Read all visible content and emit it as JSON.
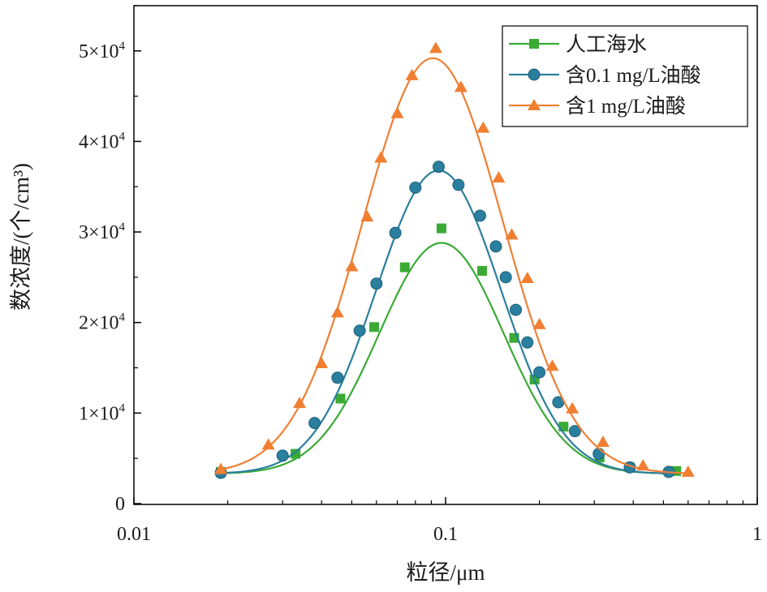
{
  "chart_data": {
    "type": "scatter",
    "xlabel": "粒径/μm",
    "ylabel": "数浓度/(个/cm³)",
    "xscale": "log",
    "xlim": [
      0.01,
      1
    ],
    "ylim": [
      0,
      55000
    ],
    "x_ticks": [
      0.01,
      0.1,
      1
    ],
    "x_tick_labels": [
      "0.01",
      "0.1",
      "1"
    ],
    "y_ticks": [
      0,
      10000,
      20000,
      30000,
      40000,
      50000
    ],
    "y_tick_labels": [
      {
        "base": "0",
        "exp": ""
      },
      {
        "base": "1×10",
        "exp": "4"
      },
      {
        "base": "2×10",
        "exp": "4"
      },
      {
        "base": "3×10",
        "exp": "4"
      },
      {
        "base": "4×10",
        "exp": "4"
      },
      {
        "base": "5×10",
        "exp": "4"
      }
    ],
    "legend_position": "top-right",
    "grid": false,
    "series": [
      {
        "name": "人工海水",
        "marker": "square",
        "color": "#3aaa35",
        "points": [
          [
            0.019,
            3500
          ],
          [
            0.033,
            5500
          ],
          [
            0.046,
            11600
          ],
          [
            0.059,
            19500
          ],
          [
            0.074,
            26100
          ],
          [
            0.097,
            30400
          ],
          [
            0.131,
            25700
          ],
          [
            0.166,
            18300
          ],
          [
            0.193,
            13700
          ],
          [
            0.239,
            8500
          ],
          [
            0.312,
            5100
          ],
          [
            0.39,
            4000
          ],
          [
            0.55,
            3600
          ]
        ],
        "fit": {
          "amplitude": 25500,
          "baseline": 3300,
          "center": 0.097,
          "sigma_log10": 0.2
        }
      },
      {
        "name": "含0.1 mg/L油酸",
        "marker": "circle",
        "color": "#2a7f9e",
        "points": [
          [
            0.019,
            3400
          ],
          [
            0.03,
            5300
          ],
          [
            0.038,
            8900
          ],
          [
            0.045,
            13900
          ],
          [
            0.053,
            19100
          ],
          [
            0.06,
            24300
          ],
          [
            0.069,
            29900
          ],
          [
            0.08,
            34900
          ],
          [
            0.095,
            37200
          ],
          [
            0.11,
            35200
          ],
          [
            0.129,
            31800
          ],
          [
            0.145,
            28400
          ],
          [
            0.156,
            25000
          ],
          [
            0.168,
            21400
          ],
          [
            0.183,
            17800
          ],
          [
            0.2,
            14500
          ],
          [
            0.23,
            11200
          ],
          [
            0.26,
            8000
          ],
          [
            0.31,
            5500
          ],
          [
            0.39,
            4000
          ],
          [
            0.52,
            3500
          ]
        ],
        "fit": {
          "amplitude": 33500,
          "baseline": 3300,
          "center": 0.095,
          "sigma_log10": 0.2
        }
      },
      {
        "name": "含1 mg/L油酸",
        "marker": "triangle",
        "color": "#f07f32",
        "points": [
          [
            0.019,
            3800
          ],
          [
            0.027,
            6500
          ],
          [
            0.034,
            11100
          ],
          [
            0.04,
            15500
          ],
          [
            0.045,
            21100
          ],
          [
            0.05,
            26200
          ],
          [
            0.056,
            31700
          ],
          [
            0.062,
            38200
          ],
          [
            0.07,
            43100
          ],
          [
            0.078,
            47300
          ],
          [
            0.093,
            50300
          ],
          [
            0.112,
            46000
          ],
          [
            0.132,
            41500
          ],
          [
            0.148,
            36000
          ],
          [
            0.163,
            29700
          ],
          [
            0.183,
            24900
          ],
          [
            0.2,
            19800
          ],
          [
            0.22,
            15200
          ],
          [
            0.255,
            10500
          ],
          [
            0.32,
            6800
          ],
          [
            0.43,
            4200
          ],
          [
            0.6,
            3500
          ]
        ],
        "fit": {
          "amplitude": 45900,
          "baseline": 3300,
          "center": 0.091,
          "sigma_log10": 0.225
        }
      }
    ]
  }
}
